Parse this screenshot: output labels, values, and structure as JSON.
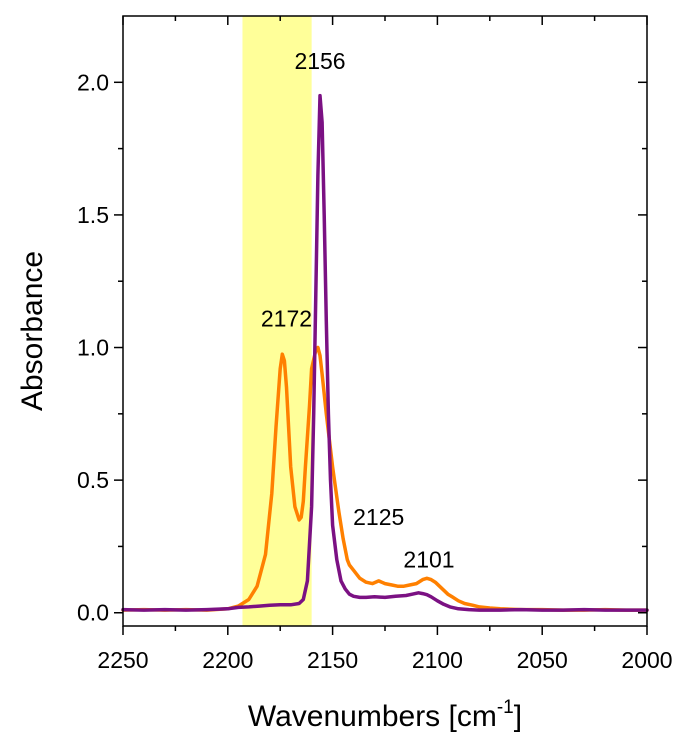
{
  "chart_data": {
    "type": "line",
    "xlabel": "Wavenumbers [cm",
    "xlabel_sup": "-1",
    "xlabel_end": "]",
    "ylabel": "Absorbance",
    "xlim": [
      2250,
      2000
    ],
    "ylim": [
      -0.05,
      2.25
    ],
    "x_axis_reversed": true,
    "grid": false,
    "x_ticks": [
      2250,
      2200,
      2150,
      2100,
      2050,
      2000
    ],
    "x_tick_labels": [
      "2250",
      "2200",
      "2150",
      "2100",
      "2050",
      "2000"
    ],
    "y_ticks": [
      0.0,
      0.5,
      1.0,
      1.5,
      2.0
    ],
    "y_tick_labels": [
      "0.0",
      "0.5",
      "1.0",
      "1.5",
      "2.0"
    ],
    "highlight_band": {
      "x_from": 2193,
      "x_to": 2160,
      "color": "#ffff99"
    },
    "annotations": [
      {
        "text": "2156",
        "x": 2156,
        "y": 2.05
      },
      {
        "text": "2172",
        "x": 2172,
        "y": 1.08
      },
      {
        "text": "2125",
        "x": 2128,
        "y": 0.33
      },
      {
        "text": "2101",
        "x": 2104,
        "y": 0.17
      }
    ],
    "series": [
      {
        "color": "#ff8000",
        "x": [
          2250,
          2240,
          2230,
          2220,
          2210,
          2200,
          2195,
          2190,
          2186,
          2182,
          2179,
          2177,
          2175,
          2174,
          2173,
          2172,
          2171,
          2170,
          2168,
          2166,
          2165,
          2164,
          2163,
          2161,
          2160,
          2158,
          2157,
          2156,
          2155,
          2153,
          2150,
          2147,
          2145,
          2143,
          2142,
          2140,
          2137,
          2134,
          2131,
          2128,
          2125,
          2122,
          2119,
          2116,
          2113,
          2110,
          2107,
          2105,
          2103,
          2101,
          2099,
          2097,
          2095,
          2093,
          2090,
          2087,
          2083,
          2080,
          2075,
          2070,
          2060,
          2050,
          2040,
          2030,
          2020,
          2010,
          2000
        ],
        "y": [
          0.01,
          0.012,
          0.01,
          0.012,
          0.01,
          0.015,
          0.025,
          0.05,
          0.1,
          0.22,
          0.45,
          0.7,
          0.92,
          0.975,
          0.95,
          0.85,
          0.7,
          0.55,
          0.4,
          0.35,
          0.36,
          0.42,
          0.55,
          0.78,
          0.92,
          0.99,
          1.0,
          0.97,
          0.9,
          0.75,
          0.55,
          0.38,
          0.28,
          0.2,
          0.18,
          0.16,
          0.13,
          0.115,
          0.11,
          0.12,
          0.11,
          0.105,
          0.1,
          0.1,
          0.105,
          0.11,
          0.125,
          0.13,
          0.125,
          0.115,
          0.1,
          0.085,
          0.07,
          0.06,
          0.045,
          0.035,
          0.028,
          0.022,
          0.018,
          0.015,
          0.012,
          0.012,
          0.01,
          0.01,
          0.012,
          0.01,
          0.01
        ]
      },
      {
        "color": "#7b1183",
        "x": [
          2250,
          2240,
          2230,
          2220,
          2210,
          2200,
          2195,
          2190,
          2185,
          2180,
          2175,
          2170,
          2166,
          2164,
          2162,
          2160,
          2159,
          2158,
          2157,
          2156,
          2155,
          2154,
          2153,
          2152,
          2151,
          2150,
          2148,
          2146,
          2144,
          2142,
          2140,
          2137,
          2134,
          2130,
          2125,
          2120,
          2115,
          2112,
          2109,
          2107,
          2105,
          2103,
          2100,
          2097,
          2094,
          2090,
          2085,
          2080,
          2070,
          2060,
          2050,
          2040,
          2030,
          2020,
          2010,
          2000
        ],
        "y": [
          0.012,
          0.01,
          0.012,
          0.01,
          0.012,
          0.015,
          0.02,
          0.022,
          0.025,
          0.028,
          0.03,
          0.03,
          0.035,
          0.05,
          0.12,
          0.4,
          0.75,
          1.2,
          1.65,
          1.95,
          1.85,
          1.5,
          1.1,
          0.75,
          0.5,
          0.33,
          0.2,
          0.12,
          0.09,
          0.07,
          0.062,
          0.058,
          0.058,
          0.06,
          0.058,
          0.062,
          0.065,
          0.07,
          0.075,
          0.072,
          0.068,
          0.06,
          0.045,
          0.032,
          0.022,
          0.015,
          0.012,
          0.01,
          0.01,
          0.012,
          0.01,
          0.01,
          0.012,
          0.01,
          0.01,
          0.01
        ]
      }
    ]
  }
}
